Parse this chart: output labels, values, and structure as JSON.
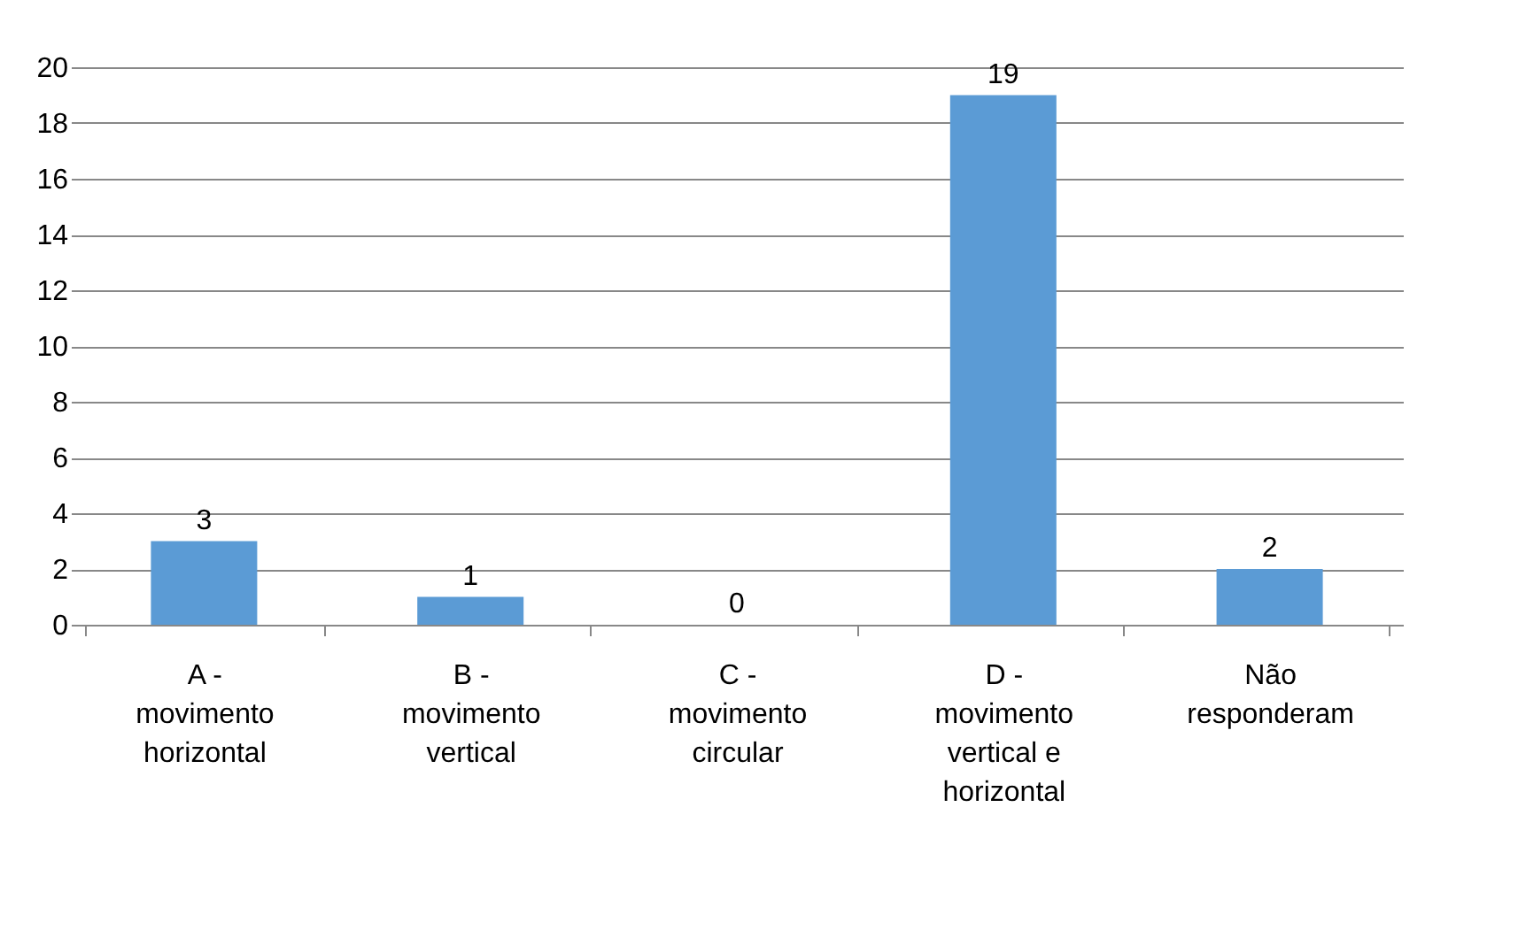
{
  "chart_data": {
    "type": "bar",
    "categories": [
      "A -\nmovimento\nhorizontal",
      "B -\nmovimento\nvertical",
      "C -\nmovimento\ncircular",
      "D -\nmovimento\nvertical e\nhorizontal",
      "Não\nresponderam"
    ],
    "values": [
      3,
      1,
      0,
      19,
      2
    ],
    "color": "#5b9bd5",
    "ylim": [
      0,
      20
    ],
    "yticks": [
      0,
      2,
      4,
      6,
      8,
      10,
      12,
      14,
      16,
      18,
      20
    ],
    "grid": "y",
    "data_labels": true
  }
}
